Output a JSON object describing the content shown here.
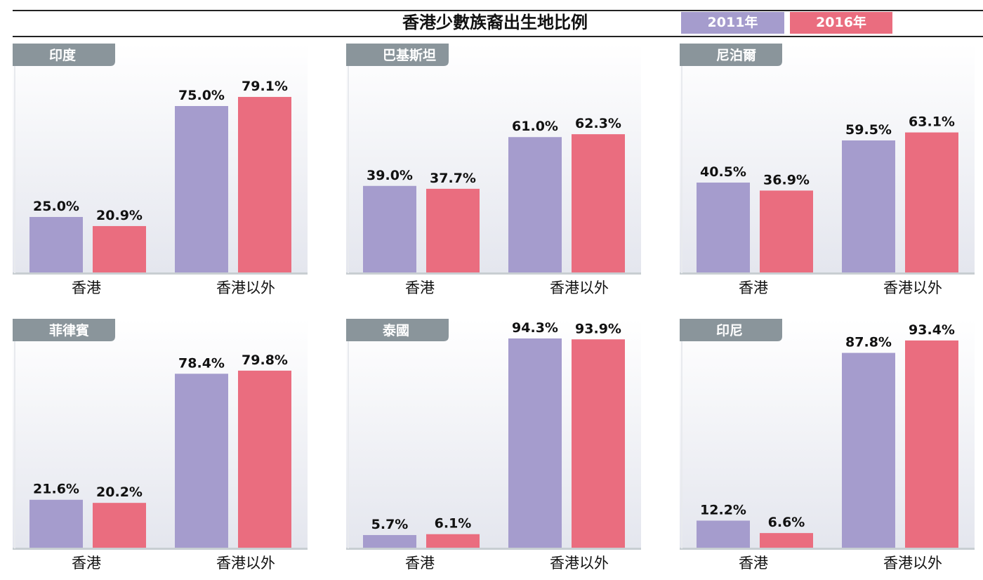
{
  "title": "香港少數族裔出生地比例",
  "legend": [
    {
      "label": "2011年",
      "color": "#a59ccd"
    },
    {
      "label": "2016年",
      "color": "#ea6d7f"
    }
  ],
  "colors": {
    "tag": "#8a959b",
    "baseline": "#c8ced2",
    "panel_fade": "#e4e6ee"
  },
  "chart_data": [
    {
      "type": "bar",
      "title": "印度",
      "categories": [
        "香港",
        "香港以外"
      ],
      "ylim": [
        0,
        100
      ],
      "series": [
        {
          "name": "2011年",
          "values": [
            25.0,
            75.0
          ]
        },
        {
          "name": "2016年",
          "values": [
            20.9,
            79.1
          ]
        }
      ],
      "data_labels": [
        [
          "25.0%",
          "75.0%"
        ],
        [
          "20.9%",
          "79.1%"
        ]
      ]
    },
    {
      "type": "bar",
      "title": "巴基斯坦",
      "categories": [
        "香港",
        "香港以外"
      ],
      "ylim": [
        0,
        100
      ],
      "series": [
        {
          "name": "2011年",
          "values": [
            39.0,
            61.0
          ]
        },
        {
          "name": "2016年",
          "values": [
            37.7,
            62.3
          ]
        }
      ],
      "data_labels": [
        [
          "39.0%",
          "61.0%"
        ],
        [
          "37.7%",
          "62.3%"
        ]
      ]
    },
    {
      "type": "bar",
      "title": "尼泊爾",
      "categories": [
        "香港",
        "香港以外"
      ],
      "ylim": [
        0,
        100
      ],
      "series": [
        {
          "name": "2011年",
          "values": [
            40.5,
            59.5
          ]
        },
        {
          "name": "2016年",
          "values": [
            36.9,
            63.1
          ]
        }
      ],
      "data_labels": [
        [
          "40.5%",
          "59.5%"
        ],
        [
          "36.9%",
          "63.1%"
        ]
      ]
    },
    {
      "type": "bar",
      "title": "菲律賓",
      "categories": [
        "香港",
        "香港以外"
      ],
      "ylim": [
        0,
        100
      ],
      "series": [
        {
          "name": "2011年",
          "values": [
            21.6,
            78.4
          ]
        },
        {
          "name": "2016年",
          "values": [
            20.2,
            79.8
          ]
        }
      ],
      "data_labels": [
        [
          "21.6%",
          "78.4%"
        ],
        [
          "20.2%",
          "79.8%"
        ]
      ]
    },
    {
      "type": "bar",
      "title": "泰國",
      "categories": [
        "香港",
        "香港以外"
      ],
      "ylim": [
        0,
        100
      ],
      "series": [
        {
          "name": "2011年",
          "values": [
            5.7,
            94.3
          ]
        },
        {
          "name": "2016年",
          "values": [
            6.1,
            93.9
          ]
        }
      ],
      "data_labels": [
        [
          "5.7%",
          "94.3%"
        ],
        [
          "6.1%",
          "93.9%"
        ]
      ]
    },
    {
      "type": "bar",
      "title": "印尼",
      "categories": [
        "香港",
        "香港以外"
      ],
      "ylim": [
        0,
        100
      ],
      "series": [
        {
          "name": "2011年",
          "values": [
            12.2,
            87.8
          ]
        },
        {
          "name": "2016年",
          "values": [
            6.6,
            93.4
          ]
        }
      ],
      "data_labels": [
        [
          "12.2%",
          "87.8%"
        ],
        [
          "6.6%",
          "93.4%"
        ]
      ]
    }
  ]
}
